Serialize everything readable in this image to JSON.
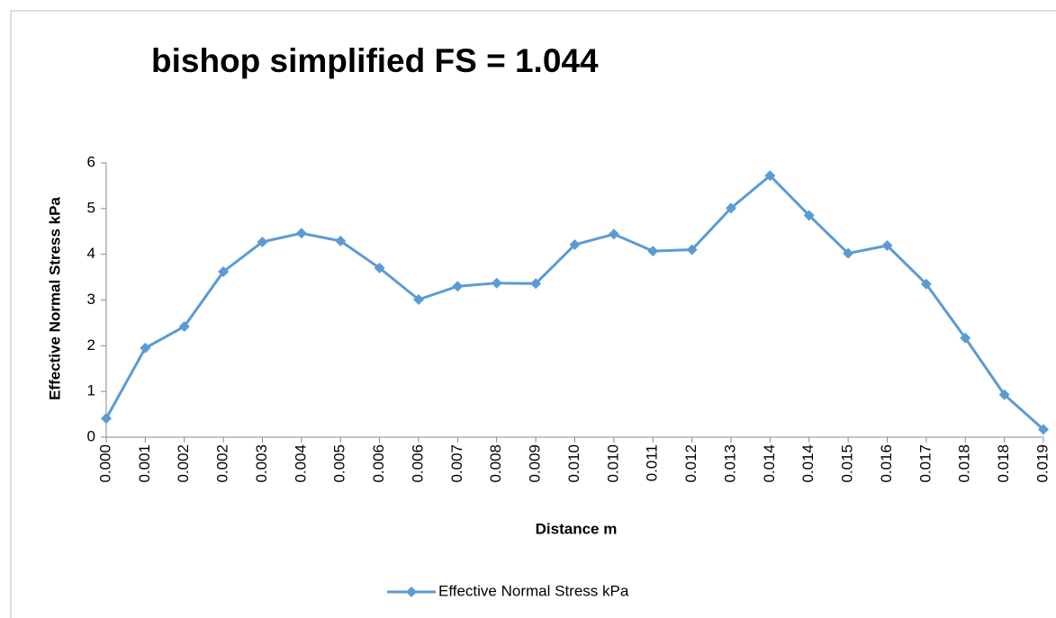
{
  "chart_data": {
    "type": "line",
    "title": "bishop simplified FS = 1.044",
    "x_label": "Distance m",
    "y_label": "Effective Normal Stress kPa",
    "categories": [
      "0.000",
      "0.001",
      "0.002",
      "0.002",
      "0.003",
      "0.004",
      "0.005",
      "0.006",
      "0.006",
      "0.007",
      "0.008",
      "0.009",
      "0.010",
      "0.010",
      "0.011",
      "0.012",
      "0.013",
      "0.014",
      "0.014",
      "0.015",
      "0.016",
      "0.017",
      "0.018",
      "0.018",
      "0.019"
    ],
    "series": [
      {
        "name": "Effective Normal Stress kPa",
        "color": "#5b9bd5",
        "values": [
          0.41,
          1.95,
          2.42,
          3.62,
          4.27,
          4.46,
          4.29,
          3.7,
          3.01,
          3.3,
          3.37,
          3.36,
          4.21,
          4.44,
          4.07,
          4.1,
          5.01,
          5.72,
          4.85,
          4.02,
          4.19,
          3.35,
          2.17,
          0.93,
          0.17
        ]
      }
    ],
    "ylim": [
      0,
      6
    ],
    "yticks": [
      0,
      1,
      2,
      3,
      4,
      5,
      6
    ],
    "grid": false,
    "legend": "bottom"
  }
}
